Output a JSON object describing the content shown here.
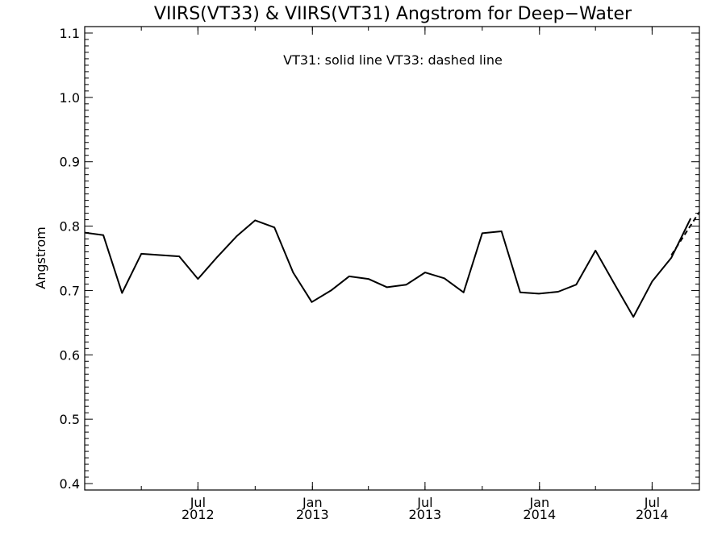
{
  "chart_data": {
    "type": "line",
    "title": "VIIRS(VT33) & VIIRS(VT31)  Angstrom for Deep−Water",
    "annotation": "VT31: solid line   VT33: dashed line",
    "xlabel": "",
    "ylabel": "Angstrom",
    "ylim": [
      0.39,
      1.11
    ],
    "y_ticks": [
      "0.4",
      "0.5",
      "0.6",
      "0.7",
      "0.8",
      "0.9",
      "1.0",
      "1.1"
    ],
    "y_tick_values": [
      0.4,
      0.5,
      0.6,
      0.7,
      0.8,
      0.9,
      1.0,
      1.1
    ],
    "x_range": [
      "2012-01-01",
      "2014-09-15"
    ],
    "x_tick_labels": [
      {
        "date": "2012-07-01",
        "month": "Jul",
        "year": "2012"
      },
      {
        "date": "2013-01-01",
        "month": "Jan",
        "year": "2013"
      },
      {
        "date": "2013-07-01",
        "month": "Jul",
        "year": "2013"
      },
      {
        "date": "2014-01-01",
        "month": "Jan",
        "year": "2014"
      },
      {
        "date": "2014-07-01",
        "month": "Jul",
        "year": "2014"
      }
    ],
    "series": [
      {
        "name": "VT31",
        "style": "solid",
        "x": [
          "2012-01-01",
          "2012-01-31",
          "2012-03-01",
          "2012-04-01",
          "2012-05-01",
          "2012-06-01",
          "2012-07-01",
          "2012-08-01",
          "2012-09-01",
          "2012-10-01",
          "2012-11-01",
          "2012-12-01",
          "2012-12-31",
          "2013-01-31",
          "2013-03-01",
          "2013-04-01",
          "2013-05-01",
          "2013-06-01",
          "2013-07-01",
          "2013-08-01",
          "2013-09-01",
          "2013-10-01",
          "2013-11-01",
          "2013-12-01",
          "2013-12-31",
          "2014-01-31",
          "2014-03-01",
          "2014-04-01",
          "2014-05-01",
          "2014-06-01",
          "2014-07-01",
          "2014-08-01",
          "2014-09-01"
        ],
        "values": [
          0.79,
          0.786,
          0.696,
          0.757,
          0.755,
          0.753,
          0.718,
          0.752,
          0.784,
          0.809,
          0.798,
          0.728,
          0.682,
          0.7,
          0.722,
          0.718,
          0.705,
          0.709,
          0.728,
          0.719,
          0.697,
          0.789,
          0.792,
          0.697,
          0.695,
          0.698,
          0.709,
          0.762,
          0.711,
          0.659,
          0.714,
          0.751,
          0.812
        ]
      },
      {
        "name": "VT33",
        "style": "dashed",
        "x": [
          "2014-08-01",
          "2014-09-15"
        ],
        "values": [
          0.755,
          0.822
        ]
      }
    ],
    "grid": false,
    "legend": "none"
  }
}
